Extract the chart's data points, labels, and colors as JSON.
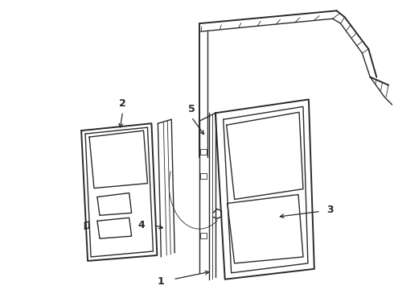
{
  "background_color": "#ffffff",
  "line_color": "#2a2a2a",
  "label_color": "#000000",
  "figsize": [
    4.9,
    3.6
  ],
  "dpi": 100,
  "lw_main": 1.4,
  "lw_med": 1.0,
  "lw_thin": 0.6,
  "label_fontsize": 9
}
